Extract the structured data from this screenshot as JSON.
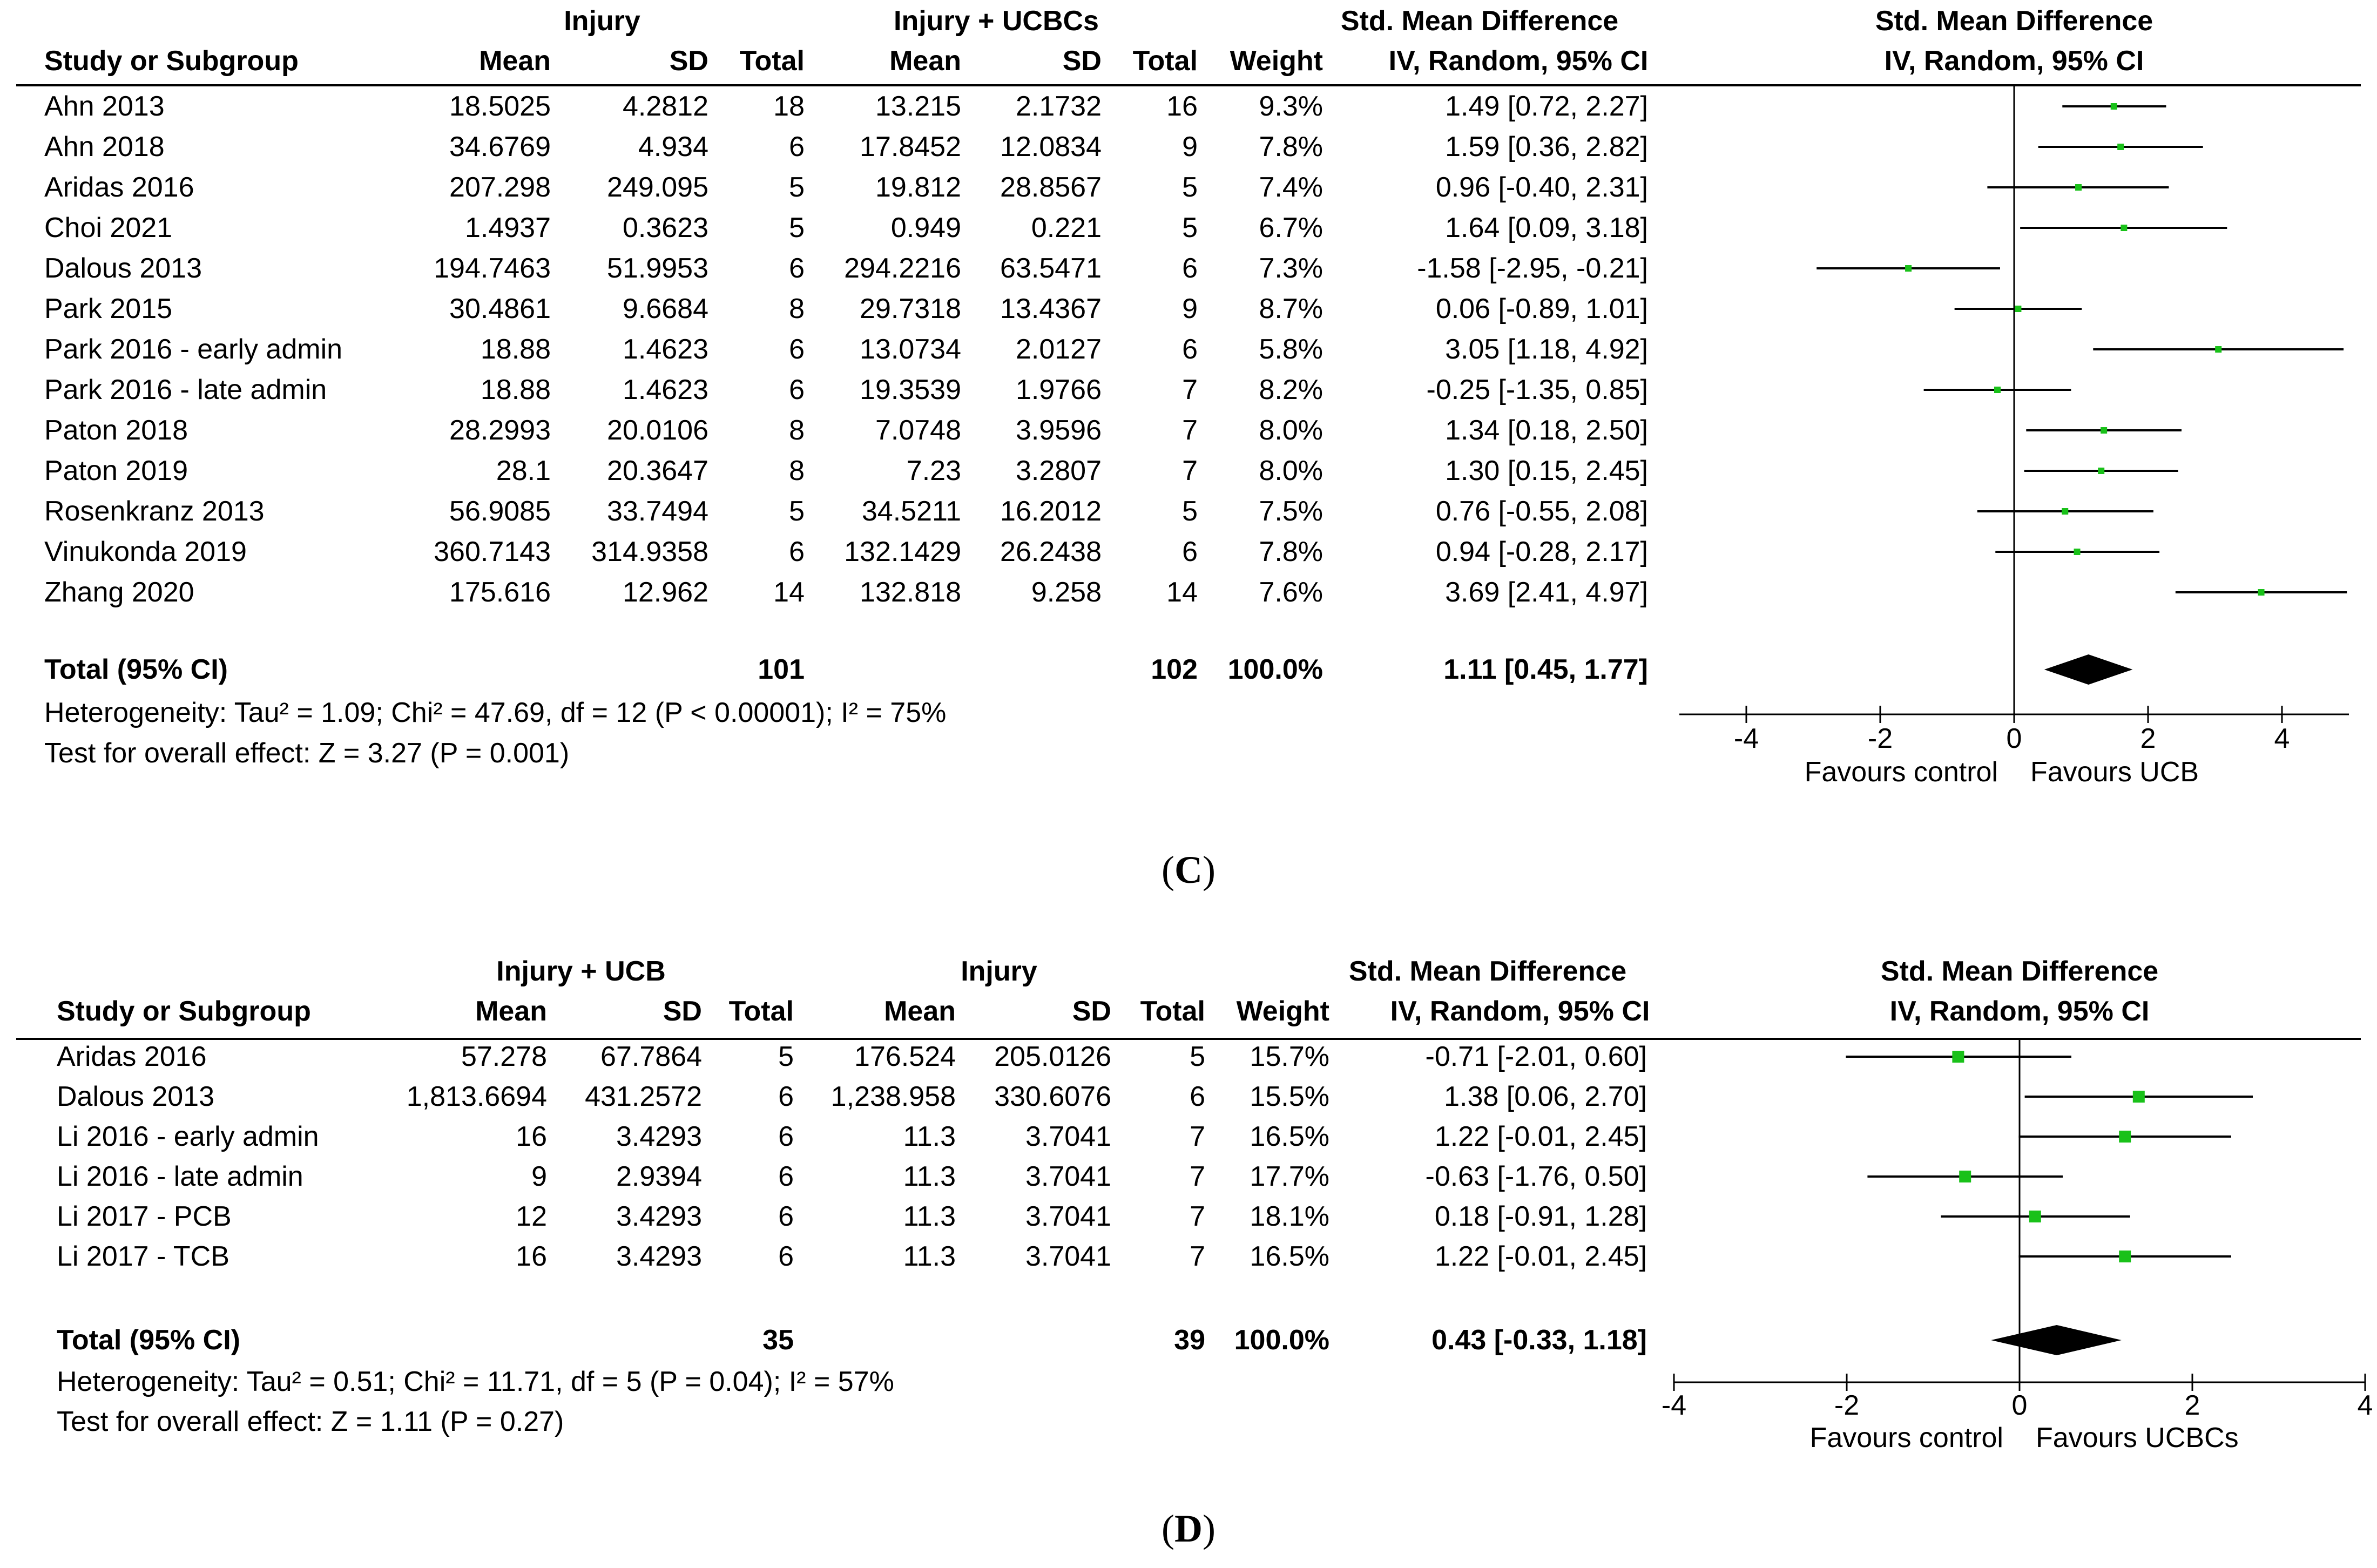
{
  "colors": {
    "point": "#19c119",
    "diamond": "#000000",
    "line": "#000000",
    "text": "#000000"
  },
  "captions": {
    "c_label": "C",
    "d_label": "D"
  },
  "chart_data": [
    {
      "type": "forest",
      "panel": "C",
      "group1_label": "Injury",
      "group2_label": "Injury + UCBCs",
      "col_labels": {
        "study": "Study or Subgroup",
        "mean1": "Mean",
        "sd1": "SD",
        "total1": "Total",
        "mean2": "Mean",
        "sd2": "SD",
        "total2": "Total",
        "weight": "Weight",
        "effect_top": "Std. Mean Difference",
        "effect_sub": "IV, Random, 95% CI"
      },
      "plot_header": {
        "top": "Std. Mean Difference",
        "sub": "IV, Random, 95% CI"
      },
      "studies": [
        {
          "name": "Ahn 2013",
          "mean1": "18.5025",
          "sd1": "4.2812",
          "n1": "18",
          "mean2": "13.215",
          "sd2": "2.1732",
          "n2": "16",
          "weight": "9.3%",
          "ci_text": "1.49 [0.72, 2.27]",
          "est": 1.49,
          "lo": 0.72,
          "hi": 2.27
        },
        {
          "name": "Ahn 2018",
          "mean1": "34.6769",
          "sd1": "4.934",
          "n1": "6",
          "mean2": "17.8452",
          "sd2": "12.0834",
          "n2": "9",
          "weight": "7.8%",
          "ci_text": "1.59 [0.36, 2.82]",
          "est": 1.59,
          "lo": 0.36,
          "hi": 2.82
        },
        {
          "name": "Aridas 2016",
          "mean1": "207.298",
          "sd1": "249.095",
          "n1": "5",
          "mean2": "19.812",
          "sd2": "28.8567",
          "n2": "5",
          "weight": "7.4%",
          "ci_text": "0.96 [-0.40, 2.31]",
          "est": 0.96,
          "lo": -0.4,
          "hi": 2.31
        },
        {
          "name": "Choi 2021",
          "mean1": "1.4937",
          "sd1": "0.3623",
          "n1": "5",
          "mean2": "0.949",
          "sd2": "0.221",
          "n2": "5",
          "weight": "6.7%",
          "ci_text": "1.64 [0.09, 3.18]",
          "est": 1.64,
          "lo": 0.09,
          "hi": 3.18
        },
        {
          "name": "Dalous 2013",
          "mean1": "194.7463",
          "sd1": "51.9953",
          "n1": "6",
          "mean2": "294.2216",
          "sd2": "63.5471",
          "n2": "6",
          "weight": "7.3%",
          "ci_text": "-1.58 [-2.95, -0.21]",
          "est": -1.58,
          "lo": -2.95,
          "hi": -0.21
        },
        {
          "name": "Park 2015",
          "mean1": "30.4861",
          "sd1": "9.6684",
          "n1": "8",
          "mean2": "29.7318",
          "sd2": "13.4367",
          "n2": "9",
          "weight": "8.7%",
          "ci_text": "0.06 [-0.89, 1.01]",
          "est": 0.06,
          "lo": -0.89,
          "hi": 1.01
        },
        {
          "name": "Park 2016 - early admin",
          "mean1": "18.88",
          "sd1": "1.4623",
          "n1": "6",
          "mean2": "13.0734",
          "sd2": "2.0127",
          "n2": "6",
          "weight": "5.8%",
          "ci_text": "3.05 [1.18, 4.92]",
          "est": 3.05,
          "lo": 1.18,
          "hi": 4.92
        },
        {
          "name": "Park 2016 - late admin",
          "mean1": "18.88",
          "sd1": "1.4623",
          "n1": "6",
          "mean2": "19.3539",
          "sd2": "1.9766",
          "n2": "7",
          "weight": "8.2%",
          "ci_text": "-0.25 [-1.35, 0.85]",
          "est": -0.25,
          "lo": -1.35,
          "hi": 0.85
        },
        {
          "name": "Paton 2018",
          "mean1": "28.2993",
          "sd1": "20.0106",
          "n1": "8",
          "mean2": "7.0748",
          "sd2": "3.9596",
          "n2": "7",
          "weight": "8.0%",
          "ci_text": "1.34 [0.18, 2.50]",
          "est": 1.34,
          "lo": 0.18,
          "hi": 2.5
        },
        {
          "name": "Paton 2019",
          "mean1": "28.1",
          "sd1": "20.3647",
          "n1": "8",
          "mean2": "7.23",
          "sd2": "3.2807",
          "n2": "7",
          "weight": "8.0%",
          "ci_text": "1.30 [0.15, 2.45]",
          "est": 1.3,
          "lo": 0.15,
          "hi": 2.45
        },
        {
          "name": "Rosenkranz 2013",
          "mean1": "56.9085",
          "sd1": "33.7494",
          "n1": "5",
          "mean2": "34.5211",
          "sd2": "16.2012",
          "n2": "5",
          "weight": "7.5%",
          "ci_text": "0.76 [-0.55, 2.08]",
          "est": 0.76,
          "lo": -0.55,
          "hi": 2.08
        },
        {
          "name": "Vinukonda 2019",
          "mean1": "360.7143",
          "sd1": "314.9358",
          "n1": "6",
          "mean2": "132.1429",
          "sd2": "26.2438",
          "n2": "6",
          "weight": "7.8%",
          "ci_text": "0.94 [-0.28, 2.17]",
          "est": 0.94,
          "lo": -0.28,
          "hi": 2.17
        },
        {
          "name": "Zhang 2020",
          "mean1": "175.616",
          "sd1": "12.962",
          "n1": "14",
          "mean2": "132.818",
          "sd2": "9.258",
          "n2": "14",
          "weight": "7.6%",
          "ci_text": "3.69 [2.41, 4.97]",
          "est": 3.69,
          "lo": 2.41,
          "hi": 4.97
        }
      ],
      "total": {
        "label": "Total (95% CI)",
        "n1": "101",
        "n2": "102",
        "weight": "100.0%",
        "ci_text": "1.11 [0.45, 1.77]",
        "est": 1.11,
        "lo": 0.45,
        "hi": 1.77
      },
      "heterogeneity": "Heterogeneity: Tau² = 1.09; Chi² = 47.69, df = 12 (P < 0.00001); I² = 75%",
      "overall_effect": "Test for overall effect: Z = 3.27 (P = 0.001)",
      "axis": {
        "xlim": [
          -5,
          5
        ],
        "ticks": [
          -4,
          -2,
          0,
          2,
          4
        ],
        "tick_labels": [
          "-4",
          "-2",
          "0",
          "2",
          "4"
        ]
      },
      "favours_left": "Favours control",
      "favours_right": "Favours UCB"
    },
    {
      "type": "forest",
      "panel": "D",
      "group1_label": "Injury + UCB",
      "group2_label": "Injury",
      "col_labels": {
        "study": "Study or Subgroup",
        "mean1": "Mean",
        "sd1": "SD",
        "total1": "Total",
        "mean2": "Mean",
        "sd2": "SD",
        "total2": "Total",
        "weight": "Weight",
        "effect_top": "Std. Mean Difference",
        "effect_sub": "IV, Random, 95% CI"
      },
      "plot_header": {
        "top": "Std. Mean Difference",
        "sub": "IV, Random, 95% CI"
      },
      "studies": [
        {
          "name": "Aridas 2016",
          "mean1": "57.278",
          "sd1": "67.7864",
          "n1": "5",
          "mean2": "176.524",
          "sd2": "205.0126",
          "n2": "5",
          "weight": "15.7%",
          "ci_text": "-0.71 [-2.01, 0.60]",
          "est": -0.71,
          "lo": -2.01,
          "hi": 0.6
        },
        {
          "name": "Dalous 2013",
          "mean1": "1,813.6694",
          "sd1": "431.2572",
          "n1": "6",
          "mean2": "1,238.958",
          "sd2": "330.6076",
          "n2": "6",
          "weight": "15.5%",
          "ci_text": "1.38 [0.06, 2.70]",
          "est": 1.38,
          "lo": 0.06,
          "hi": 2.7
        },
        {
          "name": "Li 2016 - early admin",
          "mean1": "16",
          "sd1": "3.4293",
          "n1": "6",
          "mean2": "11.3",
          "sd2": "3.7041",
          "n2": "7",
          "weight": "16.5%",
          "ci_text": "1.22 [-0.01, 2.45]",
          "est": 1.22,
          "lo": -0.01,
          "hi": 2.45
        },
        {
          "name": "Li 2016 - late admin",
          "mean1": "9",
          "sd1": "2.9394",
          "n1": "6",
          "mean2": "11.3",
          "sd2": "3.7041",
          "n2": "7",
          "weight": "17.7%",
          "ci_text": "-0.63 [-1.76, 0.50]",
          "est": -0.63,
          "lo": -1.76,
          "hi": 0.5
        },
        {
          "name": "Li 2017 - PCB",
          "mean1": "12",
          "sd1": "3.4293",
          "n1": "6",
          "mean2": "11.3",
          "sd2": "3.7041",
          "n2": "7",
          "weight": "18.1%",
          "ci_text": "0.18 [-0.91, 1.28]",
          "est": 0.18,
          "lo": -0.91,
          "hi": 1.28
        },
        {
          "name": "Li 2017 - TCB",
          "mean1": "16",
          "sd1": "3.4293",
          "n1": "6",
          "mean2": "11.3",
          "sd2": "3.7041",
          "n2": "7",
          "weight": "16.5%",
          "ci_text": "1.22 [-0.01, 2.45]",
          "est": 1.22,
          "lo": -0.01,
          "hi": 2.45
        }
      ],
      "total": {
        "label": "Total (95% CI)",
        "n1": "35",
        "n2": "39",
        "weight": "100.0%",
        "ci_text": "0.43 [-0.33, 1.18]",
        "est": 0.43,
        "lo": -0.33,
        "hi": 1.18
      },
      "heterogeneity": "Heterogeneity: Tau² = 0.51; Chi² = 11.71, df = 5 (P = 0.04); I² = 57%",
      "overall_effect": "Test for overall effect: Z = 1.11 (P = 0.27)",
      "axis": {
        "xlim": [
          -4,
          4
        ],
        "ticks": [
          -4,
          -2,
          0,
          2,
          4
        ],
        "tick_labels": [
          "-4",
          "-2",
          "0",
          "2",
          "4"
        ]
      },
      "favours_left": "Favours control",
      "favours_right": "Favours UCBCs"
    }
  ]
}
